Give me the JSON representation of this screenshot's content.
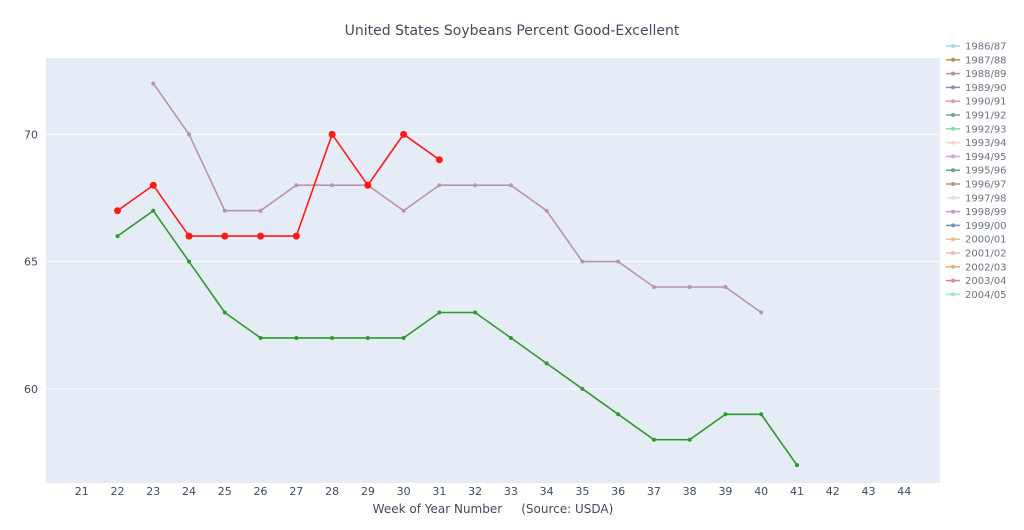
{
  "chart_data": {
    "type": "line",
    "title": "United States Soybeans Percent Good-Excellent",
    "xlabel": "Week of Year Number     (Source: USDA)",
    "ylabel": "",
    "xlim": [
      20,
      45
    ],
    "ylim": [
      56.3,
      73.0
    ],
    "x_ticks": [
      21,
      22,
      23,
      24,
      25,
      26,
      27,
      28,
      29,
      30,
      31,
      32,
      33,
      34,
      35,
      36,
      37,
      38,
      39,
      40,
      41,
      42,
      43,
      44
    ],
    "y_ticks": [
      60,
      65,
      70
    ],
    "grid": true,
    "legend_position": "right",
    "legend": [
      {
        "name": "1986/87",
        "color": "#a6d8e6"
      },
      {
        "name": "1987/88",
        "color": "#b8895a"
      },
      {
        "name": "1988/89",
        "color": "#b98fa8"
      },
      {
        "name": "1989/90",
        "color": "#8b8fae"
      },
      {
        "name": "1990/91",
        "color": "#d5a0b4"
      },
      {
        "name": "1991/92",
        "color": "#73a68e"
      },
      {
        "name": "1992/93",
        "color": "#8ed6a8"
      },
      {
        "name": "1993/94",
        "color": "#f2d0d0"
      },
      {
        "name": "1994/95",
        "color": "#d8a0e0"
      },
      {
        "name": "1995/96",
        "color": "#66a47a"
      },
      {
        "name": "1996/97",
        "color": "#c98a80"
      },
      {
        "name": "1997/98",
        "color": "#e6d8ee"
      },
      {
        "name": "1998/99",
        "color": "#c793e0"
      },
      {
        "name": "1999/00",
        "color": "#7c8fb8"
      },
      {
        "name": "2000/01",
        "color": "#e8c08a"
      },
      {
        "name": "2001/02",
        "color": "#ecb8b8"
      },
      {
        "name": "2002/03",
        "color": "#e0b070"
      },
      {
        "name": "2003/04",
        "color": "#d98a90"
      },
      {
        "name": "2004/05",
        "color": "#9ae0d8"
      }
    ],
    "series": [
      {
        "name": "",
        "color": "#b896a6",
        "marker": "small",
        "x": [
          23,
          24,
          25,
          26,
          27,
          28,
          29,
          30,
          31,
          32,
          33,
          34,
          35,
          36,
          37,
          38,
          39,
          40
        ],
        "y": [
          72,
          70,
          67,
          67,
          68,
          68,
          68,
          67,
          68,
          68,
          68,
          67,
          65,
          65,
          64,
          64,
          64,
          63
        ]
      },
      {
        "name": "",
        "color": "#2e9a2e",
        "marker": "small",
        "x": [
          22,
          23,
          24,
          25,
          26,
          27,
          28,
          29,
          30,
          31,
          32,
          33,
          34,
          35,
          36,
          37,
          38,
          39,
          40,
          41
        ],
        "y": [
          66,
          67,
          65,
          63,
          62,
          62,
          62,
          62,
          62,
          63,
          63,
          62,
          61,
          60,
          59,
          58,
          58,
          59,
          59,
          57
        ]
      },
      {
        "name": "",
        "color": "#ff1a1a",
        "marker": "large",
        "x": [
          22,
          23,
          24,
          25,
          26,
          27,
          28,
          29,
          30,
          31
        ],
        "y": [
          67,
          68,
          66,
          66,
          66,
          66,
          70,
          68,
          70,
          69
        ]
      }
    ]
  }
}
